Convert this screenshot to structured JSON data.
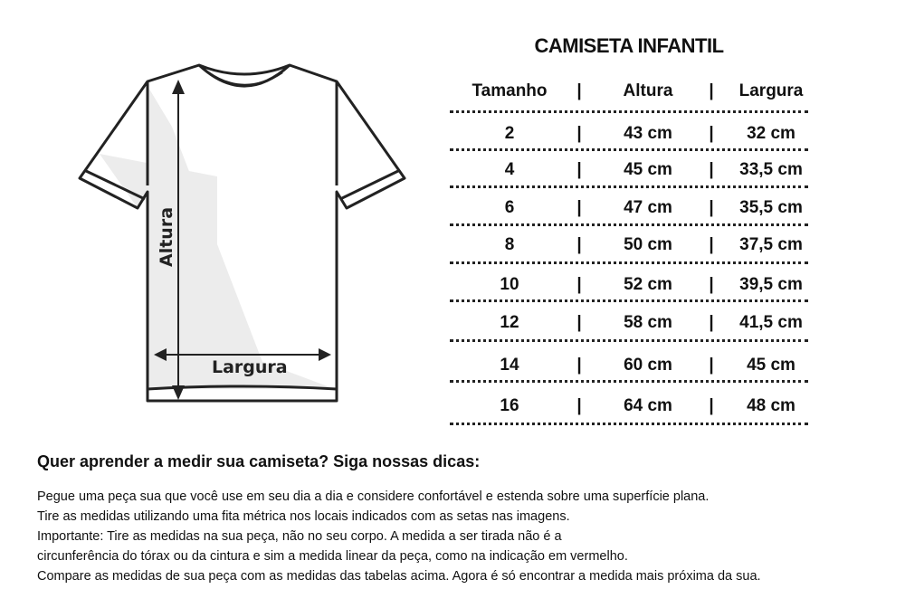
{
  "diagram": {
    "height_label": "Altura",
    "width_label": "Largura"
  },
  "table": {
    "title": "CAMISETA INFANTIL",
    "headers": [
      "Tamanho",
      "Altura",
      "Largura"
    ],
    "separator": "|",
    "rows": [
      [
        "2",
        "43 cm",
        "32 cm"
      ],
      [
        "4",
        "45 cm",
        "33,5 cm"
      ],
      [
        "6",
        "47 cm",
        "35,5 cm"
      ],
      [
        "8",
        "50 cm",
        "37,5 cm"
      ],
      [
        "10",
        "52 cm",
        "39,5 cm"
      ],
      [
        "12",
        "58 cm",
        "41,5 cm"
      ],
      [
        "14",
        "60 cm",
        "45 cm"
      ],
      [
        "16",
        "64 cm",
        "48 cm"
      ]
    ]
  },
  "tips": {
    "title": "Quer aprender a medir sua camiseta? Siga nossas dicas:",
    "lines": [
      "Pegue uma peça sua que você use em seu dia a dia e considere confortável e estenda sobre uma superfície plana.",
      "Tire as medidas utilizando uma fita métrica nos locais indicados com as setas nas imagens.",
      "Importante: Tire as medidas na sua peça, não no seu corpo.  A medida a ser tirada não é a",
      "circunferência do tórax ou da cintura e sim a medida linear da peça, como na indicação em vermelho.",
      "Compare as medidas de sua peça com as medidas das tabelas acima.  Agora é só encontrar a medida mais próxima da sua."
    ]
  }
}
